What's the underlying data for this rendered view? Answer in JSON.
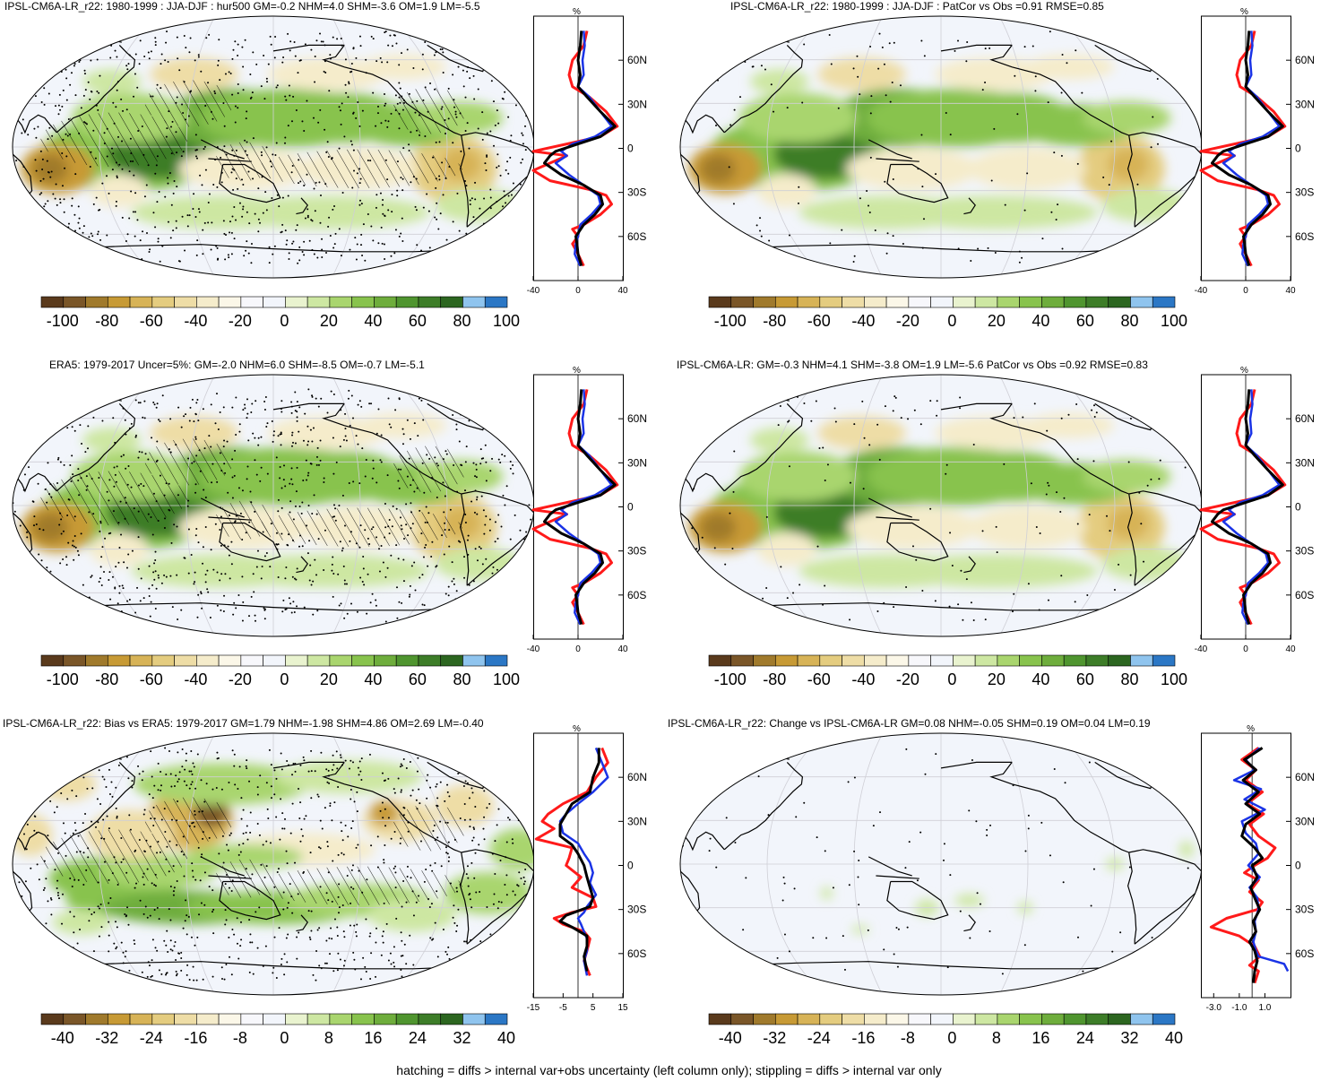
{
  "palette": {
    "colors": [
      "#5a3a1c",
      "#7a5628",
      "#a07a2c",
      "#c79a35",
      "#d7b357",
      "#e4cc7f",
      "#eedda6",
      "#f5eccb",
      "#fbf7e8",
      "#f7f7fb",
      "#f2f5fb",
      "#e9f3cf",
      "#cde7a2",
      "#a9d56e",
      "#88c34d",
      "#6ead3c",
      "#4f952f",
      "#3d7d28",
      "#2c6620",
      "#8fc4ee",
      "#2b77c5"
    ]
  },
  "line_colors": {
    "model": "#1a33e6",
    "obs": "#ff1a1a",
    "mmm": "#000000"
  },
  "panels": [
    {
      "id": "p1",
      "title": "IPSL-CM6A-LR_r22: 1980-1999 : JJA-DJF : hur500 GM=-0.2 NHM=4.0 SHM=-3.6 OM=1.9 LM=-5.5",
      "profile_unit": "%",
      "lat_labels": [
        "60N",
        "30N",
        "0",
        "30S",
        "60S"
      ],
      "x_ticks": [
        "-40",
        "0",
        "40"
      ],
      "cbar_labels": [
        "-100",
        "-80",
        "-60",
        "-40",
        "-20",
        "0",
        "20",
        "40",
        "60",
        "80",
        "100"
      ],
      "hatched": true,
      "pattern": "std"
    },
    {
      "id": "p2",
      "title": "IPSL-CM6A-LR_r22: 1980-1999 : JJA-DJF : PatCor vs Obs =0.91 RMSE=0.85",
      "profile_unit": "%",
      "lat_labels": [
        "60N",
        "30N",
        "0",
        "30S",
        "60S"
      ],
      "x_ticks": [
        "-40",
        "0",
        "40"
      ],
      "cbar_labels": [
        "-100",
        "-80",
        "-60",
        "-40",
        "-20",
        "0",
        "20",
        "40",
        "60",
        "80",
        "100"
      ],
      "hatched": false,
      "pattern": "std"
    },
    {
      "id": "p3",
      "title": "ERA5: 1979-2017 Uncer=5%: GM=-2.0 NHM=6.0 SHM=-8.5 OM=-0.7 LM=-5.1",
      "profile_unit": "%",
      "lat_labels": [
        "60N",
        "30N",
        "0",
        "30S",
        "60S"
      ],
      "x_ticks": [
        "-40",
        "0",
        "40"
      ],
      "cbar_labels": [
        "-100",
        "-80",
        "-60",
        "-40",
        "-20",
        "0",
        "20",
        "40",
        "60",
        "80",
        "100"
      ],
      "hatched": true,
      "pattern": "std"
    },
    {
      "id": "p4",
      "title": "IPSL-CM6A-LR: GM=-0.3 NHM=4.1 SHM=-3.8 OM=1.9 LM=-5.6 PatCor vs Obs =0.92 RMSE=0.83",
      "profile_unit": "%",
      "lat_labels": [
        "60N",
        "30N",
        "0",
        "30S",
        "60S"
      ],
      "x_ticks": [
        "-40",
        "0",
        "40"
      ],
      "cbar_labels": [
        "-100",
        "-80",
        "-60",
        "-40",
        "-20",
        "0",
        "20",
        "40",
        "60",
        "80",
        "100"
      ],
      "hatched": false,
      "pattern": "std"
    },
    {
      "id": "p5",
      "title": "IPSL-CM6A-LR_r22: Bias vs ERA5: 1979-2017 GM=1.79 NHM=-1.98 SHM=4.86 OM=2.69 LM=-0.40",
      "profile_unit": "%",
      "lat_labels": [
        "60N",
        "30N",
        "0",
        "30S",
        "60S"
      ],
      "x_ticks": [
        "-15",
        "-5",
        "5",
        "15"
      ],
      "cbar_labels": [
        "-40",
        "-32",
        "-24",
        "-16",
        "-8",
        "0",
        "8",
        "16",
        "24",
        "32",
        "40"
      ],
      "hatched": true,
      "pattern": "bias"
    },
    {
      "id": "p6",
      "title": "IPSL-CM6A-LR_r22: Change vs IPSL-CM6A-LR GM=0.08 NHM=-0.05 SHM=0.19 OM=0.04 LM=0.19",
      "profile_unit": "%",
      "lat_labels": [
        "60N",
        "30N",
        "0",
        "30S",
        "60S"
      ],
      "x_ticks": [
        "-3.0",
        "-1.0",
        "1.0"
      ],
      "cbar_labels": [
        "-40",
        "-32",
        "-24",
        "-16",
        "-8",
        "0",
        "8",
        "16",
        "24",
        "32",
        "40"
      ],
      "hatched": false,
      "pattern": "change"
    }
  ],
  "footer": "hatching = diffs > internal var+obs uncertainty (left column only); stippling = diffs > internal var only"
}
